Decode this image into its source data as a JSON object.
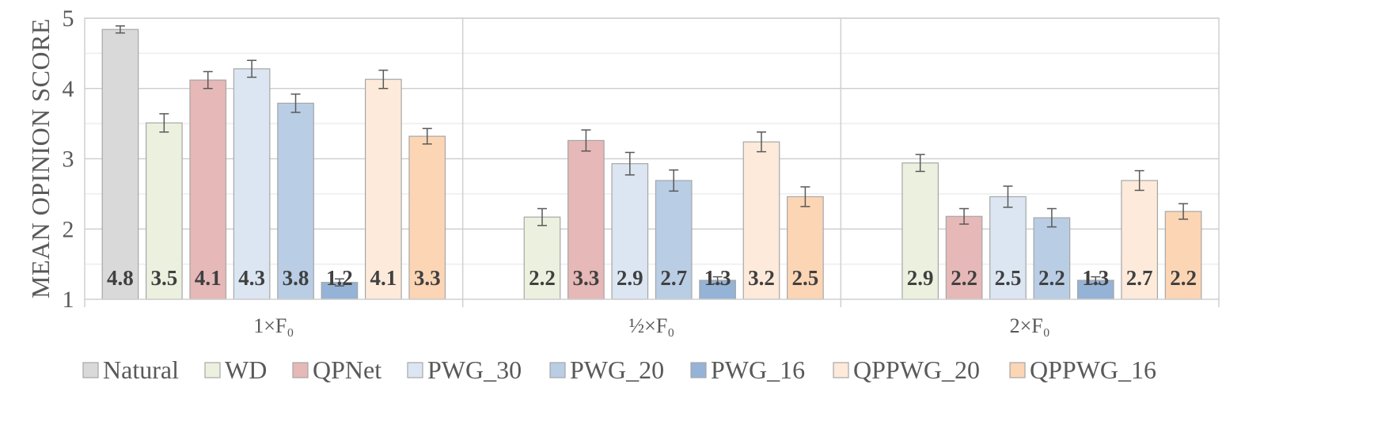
{
  "chart_data": {
    "type": "bar",
    "title": "",
    "xlabel": "",
    "ylabel": "MEAN OPINION SCORE",
    "ylim": [
      1,
      5
    ],
    "yticks": [
      "1",
      "2",
      "3",
      "4",
      "5"
    ],
    "grid": true,
    "legend_position": "bottom",
    "categories": [
      "1×F₀",
      "½×F₀",
      "2×F₀"
    ],
    "series": [
      {
        "name": "Natural",
        "color": "#d9d9d9",
        "values": [
          4.84,
          null,
          null
        ],
        "errors": [
          0.05,
          null,
          null
        ],
        "labels": [
          "4.8",
          "",
          ""
        ]
      },
      {
        "name": "WD",
        "color": "#ebf1de",
        "values": [
          3.51,
          2.17,
          2.94
        ],
        "errors": [
          0.13,
          0.12,
          0.12
        ],
        "labels": [
          "3.5",
          "2.2",
          "2.9"
        ]
      },
      {
        "name": "QPNet",
        "color": "#e6b8b7",
        "values": [
          4.12,
          3.26,
          2.18
        ],
        "errors": [
          0.12,
          0.15,
          0.11
        ],
        "labels": [
          "4.1",
          "3.3",
          "2.2"
        ]
      },
      {
        "name": "PWG_30",
        "color": "#dce6f2",
        "values": [
          4.28,
          2.93,
          2.46
        ],
        "errors": [
          0.12,
          0.16,
          0.15
        ],
        "labels": [
          "4.3",
          "2.9",
          "2.5"
        ]
      },
      {
        "name": "PWG_20",
        "color": "#b9cde5",
        "values": [
          3.79,
          2.69,
          2.16
        ],
        "errors": [
          0.13,
          0.15,
          0.13
        ],
        "labels": [
          "3.8",
          "2.7",
          "2.2"
        ]
      },
      {
        "name": "PWG_16",
        "color": "#95b3d7",
        "values": [
          1.24,
          1.27,
          1.27
        ],
        "errors": [
          0.05,
          0.05,
          0.05
        ],
        "labels": [
          "1.2",
          "1.3",
          "1.3"
        ]
      },
      {
        "name": "QPPWG_20",
        "color": "#fdeada",
        "values": [
          4.13,
          3.24,
          2.69
        ],
        "errors": [
          0.13,
          0.14,
          0.14
        ],
        "labels": [
          "4.1",
          "3.2",
          "2.7"
        ]
      },
      {
        "name": "QPPWG_16",
        "color": "#fcd5b5",
        "values": [
          3.32,
          2.46,
          2.25
        ],
        "errors": [
          0.11,
          0.14,
          0.11
        ],
        "labels": [
          "3.3",
          "2.5",
          "2.2"
        ]
      }
    ]
  }
}
